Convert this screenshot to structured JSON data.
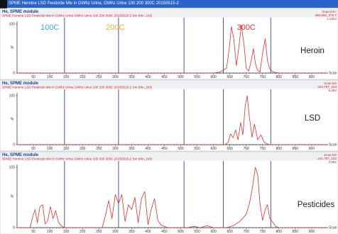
{
  "window": {
    "title": "SPME Heroine LSD Pesticide Mix in GWhz Urine, GWhz Urine 100 200 300C 20150515-2"
  },
  "temperature_labels": [
    {
      "text": "100C",
      "color": "#3aa8e0",
      "x": 100
    },
    {
      "text": "200C",
      "color": "#e3b12a",
      "x": 300
    },
    {
      "text": "300C",
      "color": "#e12d2d",
      "x": 700
    }
  ],
  "panels": [
    {
      "module": "He, SPME module",
      "subtitle": "SPME Heroine LSD Pesticide Mix in GWhz Urine GWhz Urine 100 200 300C 20150515-2 Sm (Mn, 2x3)",
      "scan_lines": [
        "Scan ES+",
        "369.906_370.7",
        "1.42e4"
      ],
      "label": "Heroin"
    },
    {
      "module": "He, SPME module",
      "subtitle": "SPME Heroine LSD Pesticide Mix in GWhz Urine GWhz Urine 100 200 300C 20150515-2 Sm (Mn, 2x3)",
      "scan_lines": [
        "Scan ES",
        "323.797_324",
        "5.68e"
      ],
      "label": "LSD"
    },
    {
      "module": "He, SPME module",
      "subtitle": "SPME Heroine LSD Pesticide Mix in GWhz Urine GWhz Urine 100 200 300C 20150515-2 Sm (Mn, 2x3)",
      "scan_lines": [
        "Scan ES",
        "241.797_242",
        "3.68e"
      ],
      "label": "Pesticides"
    }
  ],
  "chart_data": [
    {
      "type": "line",
      "title": "Heroin",
      "xlabel": "Scan",
      "ylabel": "%",
      "xlim": [
        0,
        950
      ],
      "ylim": [
        0,
        100
      ],
      "x_ticks": [
        50,
        100,
        150,
        200,
        250,
        300,
        350,
        400,
        450,
        500,
        550,
        600,
        650,
        700,
        750,
        800,
        850,
        900
      ],
      "y_ticks": [
        0,
        100
      ],
      "vertical_markers": [
        145,
        310,
        510,
        630,
        775
      ],
      "series": [
        {
          "x": [
            0,
            600,
            620,
            640,
            648,
            655,
            662,
            670,
            678,
            685,
            693,
            700,
            708,
            715,
            722,
            728,
            735,
            742,
            750,
            758,
            765,
            772,
            780,
            790,
            800,
            950
          ],
          "y": [
            0,
            0,
            2,
            10,
            50,
            95,
            70,
            15,
            55,
            98,
            60,
            10,
            4,
            25,
            50,
            20,
            5,
            2,
            40,
            70,
            25,
            8,
            3,
            1,
            0,
            0
          ]
        }
      ]
    },
    {
      "type": "line",
      "title": "LSD",
      "xlabel": "Scan",
      "ylabel": "%",
      "xlim": [
        0,
        950
      ],
      "ylim": [
        0,
        100
      ],
      "x_ticks": [
        50,
        100,
        150,
        200,
        250,
        300,
        350,
        400,
        450,
        500,
        550,
        600,
        650,
        700,
        750,
        800,
        850,
        900
      ],
      "y_ticks": [
        0,
        100
      ],
      "vertical_markers": [
        145,
        310,
        510,
        630,
        775
      ],
      "series": [
        {
          "x": [
            0,
            635,
            645,
            652,
            660,
            668,
            675,
            683,
            690,
            697,
            703,
            710,
            718,
            725,
            735,
            745,
            755,
            770,
            950
          ],
          "y": [
            0,
            0,
            5,
            22,
            14,
            30,
            10,
            45,
            20,
            80,
            100,
            55,
            15,
            42,
            10,
            20,
            5,
            0,
            0
          ]
        }
      ]
    },
    {
      "type": "line",
      "title": "Pesticides",
      "xlabel": "Scan",
      "ylabel": "%",
      "xlim": [
        0,
        950
      ],
      "ylim": [
        0,
        100
      ],
      "x_ticks": [
        50,
        100,
        150,
        200,
        250,
        300,
        350,
        400,
        450,
        500,
        550,
        600,
        650,
        700,
        750,
        800,
        850,
        900
      ],
      "y_ticks": [
        0,
        100
      ],
      "vertical_markers": [
        145,
        310,
        510,
        630,
        775
      ],
      "series": [
        {
          "x": [
            0,
            40,
            48,
            55,
            62,
            70,
            78,
            86,
            94,
            102,
            110,
            118,
            126,
            134,
            145,
            260,
            270,
            280,
            290,
            300,
            310,
            320,
            330,
            340,
            350,
            360,
            370,
            380,
            390,
            400,
            410,
            420,
            430,
            440,
            460,
            520,
            540,
            560,
            580,
            600,
            640,
            660,
            680,
            700,
            710,
            720,
            728,
            735,
            742,
            750,
            758,
            765,
            772,
            780,
            790,
            800,
            950
          ],
          "y": [
            0,
            0,
            18,
            30,
            8,
            35,
            38,
            6,
            12,
            35,
            15,
            28,
            10,
            3,
            0,
            0,
            20,
            45,
            15,
            55,
            40,
            55,
            10,
            38,
            30,
            50,
            8,
            48,
            60,
            5,
            30,
            48,
            12,
            4,
            0,
            0,
            2,
            0,
            3,
            0,
            0,
            3,
            10,
            22,
            40,
            70,
            100,
            88,
            40,
            12,
            30,
            38,
            15,
            10,
            2,
            0,
            0
          ]
        }
      ]
    }
  ]
}
